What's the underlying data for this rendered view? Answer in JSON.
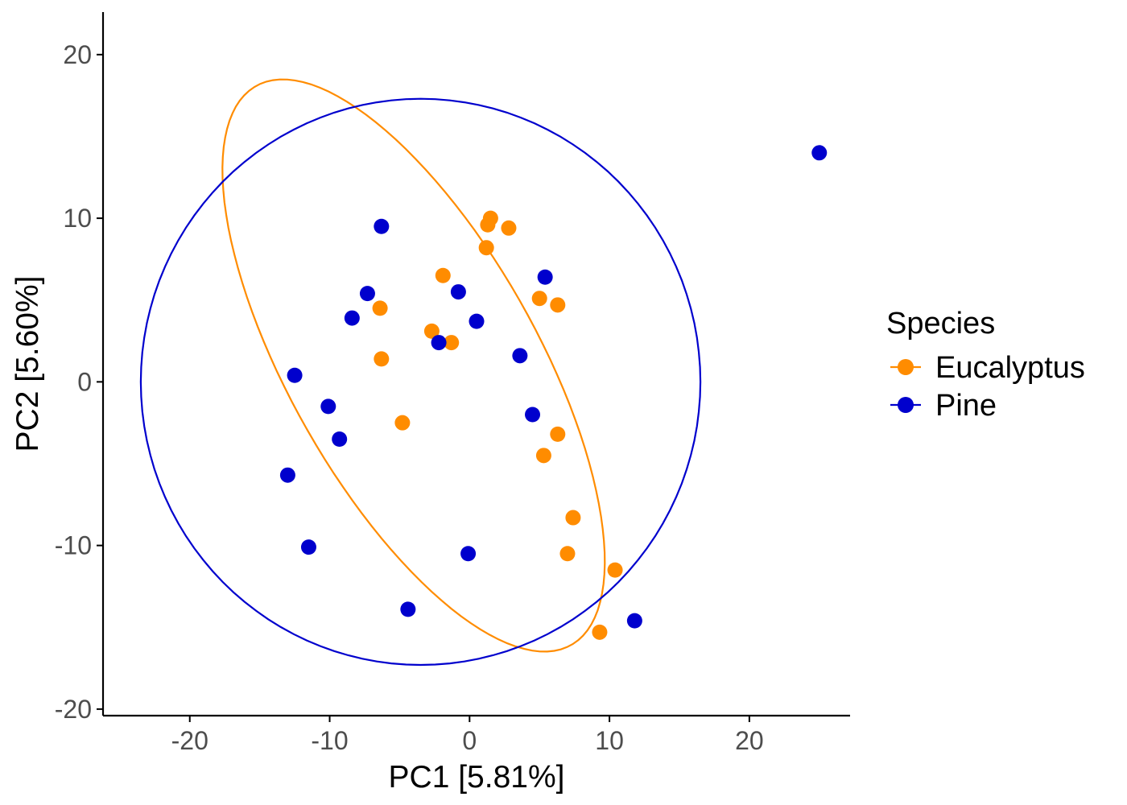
{
  "chart_data": {
    "type": "scatter",
    "title": "",
    "xlabel": "PC1 [5.81%]",
    "ylabel": "PC2 [5.60%]",
    "xlim": [
      -26.2,
      27.2
    ],
    "ylim": [
      -20.4,
      22.6
    ],
    "x_ticks": [
      -20,
      -10,
      0,
      10,
      20
    ],
    "y_ticks": [
      -20,
      -10,
      0,
      10,
      20
    ],
    "x_tick_labels": [
      "-20",
      "-10",
      "0",
      "10",
      "20"
    ],
    "y_tick_labels": [
      "-20",
      "-10",
      "0",
      "10",
      "20"
    ],
    "grid": false,
    "legend": {
      "title": "Species",
      "position": "right"
    },
    "series": [
      {
        "name": "Eucalyptus",
        "color": "#FF8C00",
        "points": [
          [
            1.5,
            10.0
          ],
          [
            1.3,
            9.6
          ],
          [
            2.8,
            9.4
          ],
          [
            1.2,
            8.2
          ],
          [
            -1.9,
            6.5
          ],
          [
            5.0,
            5.1
          ],
          [
            6.3,
            4.7
          ],
          [
            -6.4,
            4.5
          ],
          [
            -2.7,
            3.1
          ],
          [
            -1.3,
            2.4
          ],
          [
            -6.3,
            1.4
          ],
          [
            -4.8,
            -2.5
          ],
          [
            6.3,
            -3.2
          ],
          [
            5.3,
            -4.5
          ],
          [
            7.4,
            -8.3
          ],
          [
            7.0,
            -10.5
          ],
          [
            10.4,
            -11.5
          ],
          [
            9.3,
            -15.3
          ]
        ],
        "ellipse": {
          "center": [
            -4.0,
            1.0
          ],
          "rx": 20.5,
          "ry": 8.5,
          "angle_deg": -55
        }
      },
      {
        "name": "Pine",
        "color": "#0000CD",
        "points": [
          [
            25.0,
            14.0
          ],
          [
            -6.3,
            9.5
          ],
          [
            5.4,
            6.4
          ],
          [
            -7.3,
            5.4
          ],
          [
            -0.8,
            5.5
          ],
          [
            -8.4,
            3.9
          ],
          [
            0.5,
            3.7
          ],
          [
            -2.2,
            2.4
          ],
          [
            3.6,
            1.6
          ],
          [
            -12.5,
            0.4
          ],
          [
            -10.1,
            -1.5
          ],
          [
            -9.3,
            -3.5
          ],
          [
            4.5,
            -2.0
          ],
          [
            -13.0,
            -5.7
          ],
          [
            -11.5,
            -10.1
          ],
          [
            -0.1,
            -10.5
          ],
          [
            -4.4,
            -13.9
          ],
          [
            11.8,
            -14.6
          ]
        ],
        "ellipse": {
          "center": [
            -3.5,
            0.0
          ],
          "rx": 20.0,
          "ry": 17.3,
          "angle_deg": 0
        }
      }
    ]
  }
}
